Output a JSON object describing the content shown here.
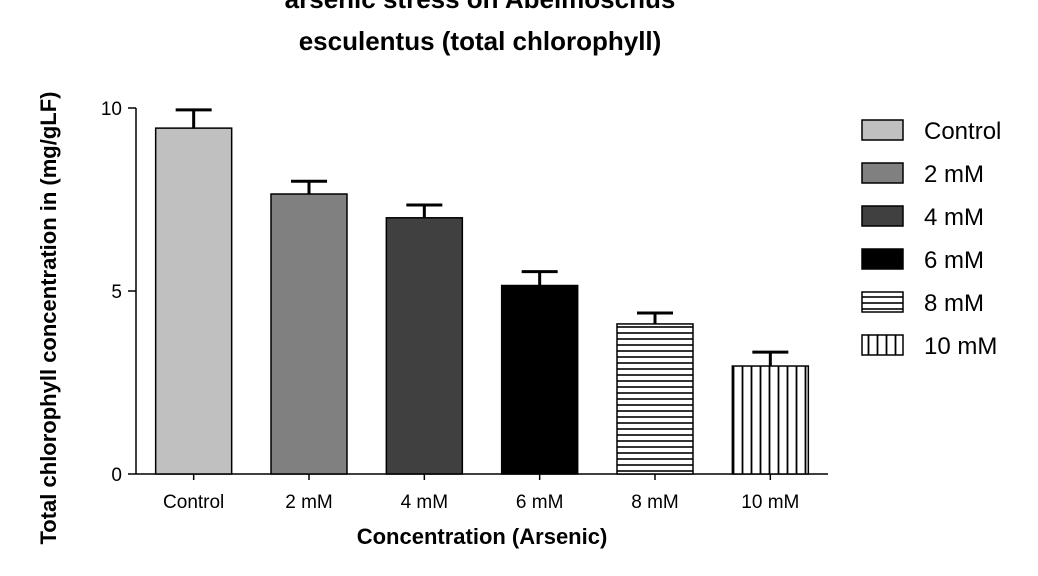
{
  "chart_data": {
    "type": "bar",
    "title_lines": [
      "arsenic stress on Abelmoschus",
      "esculentus (total chlorophyll)"
    ],
    "xlabel": "Concentration (Arsenic)",
    "ylabel": "Total chlorophyll concentration in (mg/gLF)",
    "categories": [
      "Control",
      "2 mM",
      "4 mM",
      "6 mM",
      "8 mM",
      "10 mM"
    ],
    "values": [
      9.45,
      7.65,
      7.0,
      5.15,
      4.1,
      2.95
    ],
    "errors": [
      0.5,
      0.35,
      0.35,
      0.38,
      0.3,
      0.38
    ],
    "ylim": [
      0,
      10
    ],
    "yticks": [
      0,
      5,
      10
    ],
    "grid": false,
    "legend_position": "right",
    "series_styles": [
      {
        "name": "Control",
        "fill": "#c0c0c0",
        "pattern": "solid"
      },
      {
        "name": "2 mM",
        "fill": "#808080",
        "pattern": "solid"
      },
      {
        "name": "4 mM",
        "fill": "#404040",
        "pattern": "solid"
      },
      {
        "name": "6 mM",
        "fill": "#000000",
        "pattern": "solid"
      },
      {
        "name": "8 mM",
        "fill": "#ffffff",
        "pattern": "horizontal-lines"
      },
      {
        "name": "10 mM",
        "fill": "#ffffff",
        "pattern": "vertical-lines"
      }
    ]
  }
}
